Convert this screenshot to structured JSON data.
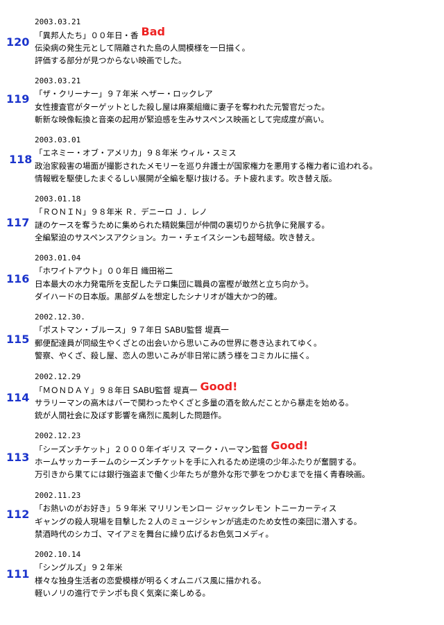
{
  "accent_number_color": "#1a33cc",
  "rating_color": "#ee2222",
  "entries": [
    {
      "number": "120",
      "date": "2003.03.21",
      "title": "「異邦人たち」００年日・香",
      "rating": "Bad",
      "desc1": "伝染病の発生元として隔離された島の人間模様を一日描く。",
      "desc2": "評価する部分が見つからない映画でした。"
    },
    {
      "number": "119",
      "date": "2003.03.21",
      "title": "「ザ・クリーナー」９７年米 ヘザー・ロックレア",
      "rating": "",
      "desc1": "女性捜査官がターゲットとした殺し屋は麻薬組織に妻子を奪われた元警官だった。",
      "desc2": "斬新な映像転換と音楽の起用が緊迫感を生みサスペンス映画として完成度が高い。"
    },
    {
      "number": "118",
      "date": "2003.03.01",
      "title": "「エネミー・オブ・アメリカ」９８年米 ウィル・スミス",
      "rating": "",
      "desc1": "政治家殺害の場面が撮影されたメモリーを巡り弁護士が国家権力を悪用する権力者に追われる。",
      "desc2": "情報戦を駆使したまぐるしい展開が全編を駆け抜ける。チト疲れます。吹き替え版。"
    },
    {
      "number": "117",
      "date": "2003.01.18",
      "title": "「ＲＯＮＩＮ」９８年米 Ｒ．デニーロ Ｊ．レノ",
      "rating": "",
      "desc1": "謎のケースを奪うために集められた精鋭集団が仲間の裏切りから抗争に発展する。",
      "desc2": "全編緊迫のサスペンスアクション。カー・チェイスシーンも超弩級。吹き替え。"
    },
    {
      "number": "116",
      "date": "2003.01.04",
      "title": "「ホワイトアウト」００年日 織田裕二",
      "rating": "",
      "desc1": "日本最大の水力発電所を支配したテロ集団に職員の富樫が敢然と立ち向かう。",
      "desc2": "ダイハードの日本版。黒部ダムを想定したシナリオが雄大かつ的確。"
    },
    {
      "number": "115",
      "date": "2002.12.30.",
      "title": "「ポストマン・ブルース」９７年日 SABU監督 堤真一",
      "rating": "",
      "desc1": "郵便配達員が同級生やくざとの出会いから思いこみの世界に巻き込まれてゆく。",
      "desc2": "警察、やくざ、殺し屋、恋人の思いこみが非日常に誘う様をコミカルに描く。"
    },
    {
      "number": "114",
      "date": "2002.12.29",
      "title": "「ＭＯＮＤＡＹ」９８年日 SABU監督 堤真一",
      "rating": "Good!",
      "desc1": "サラリーマンの高木はバーで関わったやくざと多量の酒を飲んだことから暴走を始める。",
      "desc2": "銃が人間社会に及ぼす影響を痛烈に風刺した問題作。"
    },
    {
      "number": "113",
      "date": "2002.12.23",
      "title": "「シーズンチケット」２０００年イギリス マーク・ハーマン監督",
      "rating": "Good!",
      "desc1": "ホームサッカーチームのシーズンチケットを手に入れるため逆境の少年ふたりが奮闘する。",
      "desc2": "万引きから果てには銀行強盗まで働く少年たちが意外な形で夢をつかむまでを描く青春映画。"
    },
    {
      "number": "112",
      "date": "2002.11.23",
      "title": "「お熱いのがお好き」５９年米 マリリンモンロー ジャックレモン トニーカーティス",
      "rating": "",
      "desc1": "ギャングの殺人現場を目撃した２人のミュージシャンが逃走のため女性の楽団に潜入する。",
      "desc2": "禁酒時代のシカゴ、マイアミを舞台に繰り広げるお色気コメディ。"
    },
    {
      "number": "111",
      "date": "2002.10.14",
      "title": "「シングルズ」９２年米",
      "rating": "",
      "desc1": "様々な独身生活者の恋愛模様が明るくオムニバス風に描かれる。",
      "desc2": "軽いノリの進行でテンポも良く気楽に楽しめる。"
    }
  ]
}
